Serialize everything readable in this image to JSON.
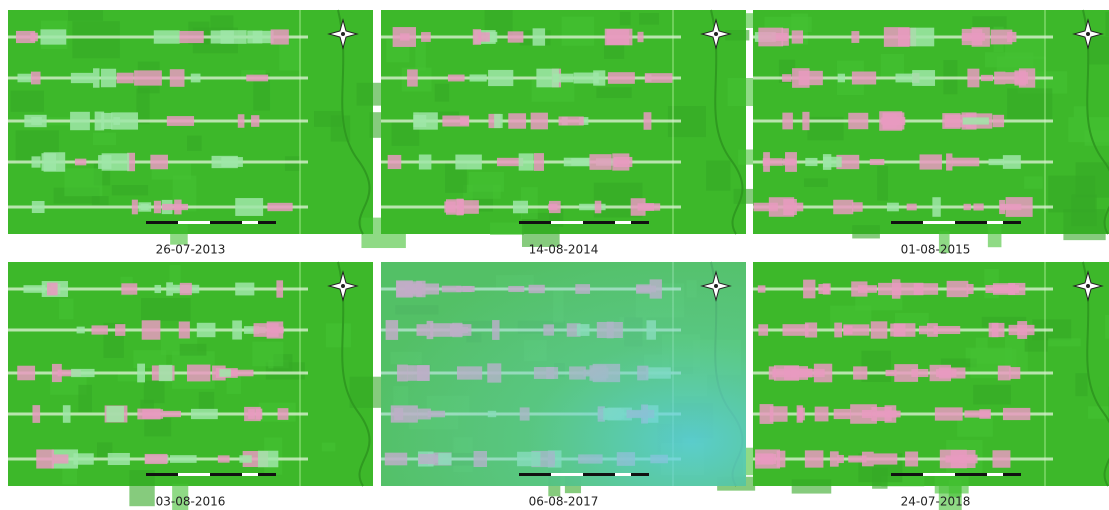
{
  "panels": [
    {
      "caption": "26-07-2013"
    },
    {
      "caption": "14-08-2014"
    },
    {
      "caption": "01-08-2015"
    },
    {
      "caption": "03-08-2016"
    },
    {
      "caption": "06-08-2017"
    },
    {
      "caption": "24-07-2018"
    }
  ]
}
